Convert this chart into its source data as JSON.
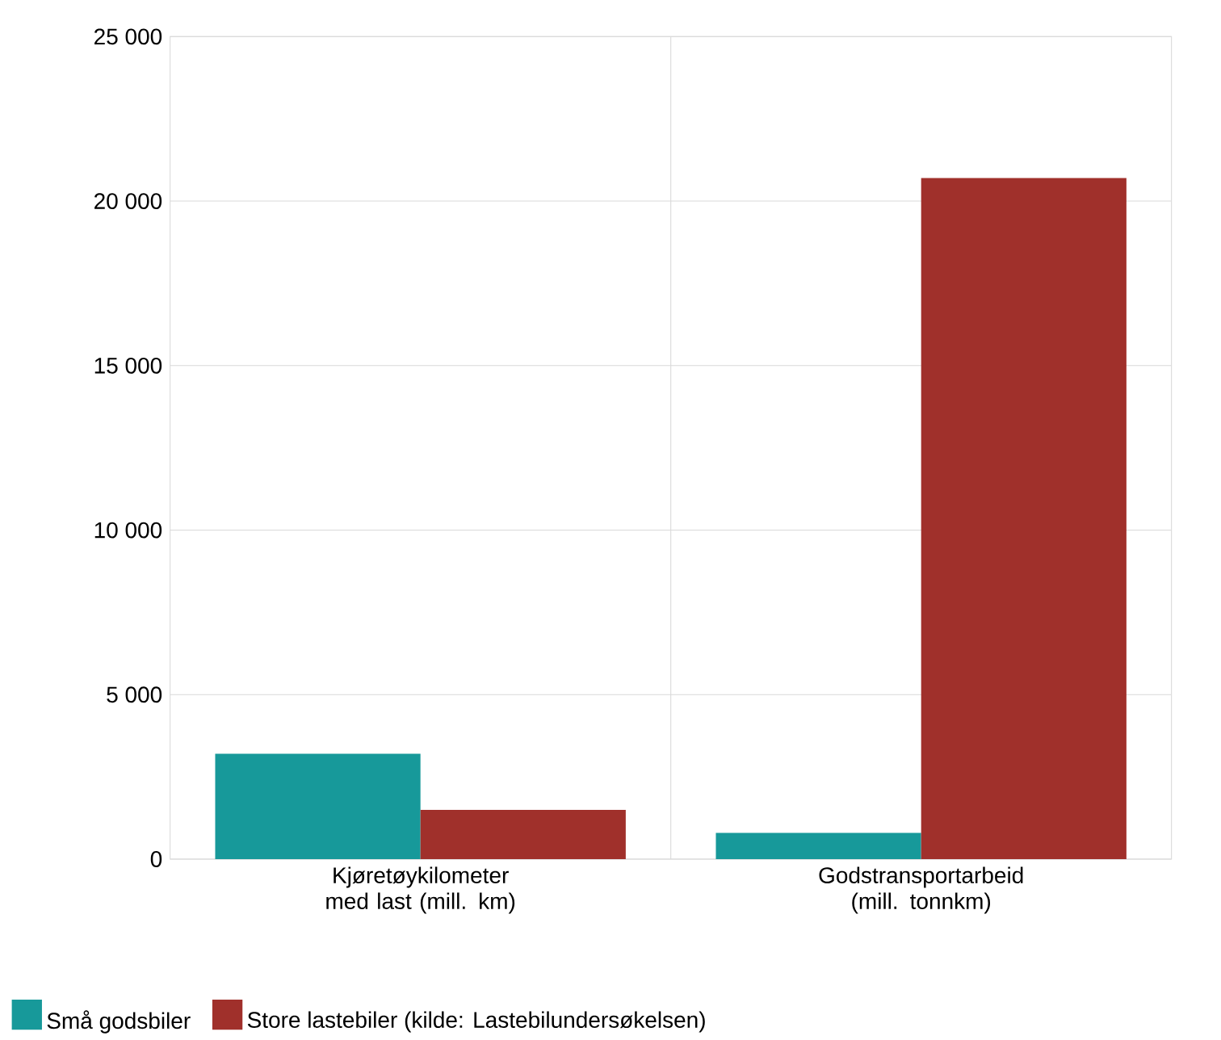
{
  "chart_data": {
    "type": "bar",
    "categories": [
      "Kjøretøykilometer med last (mill. km)",
      "Godstransportarbeid (mill. tonnkm)"
    ],
    "series": [
      {
        "name": "Små godsbiler",
        "color": "#17999a",
        "values": [
          3200,
          800
        ]
      },
      {
        "name": "Store lastebiler (kilde: Lastebilundersøkelsen)",
        "color": "#a0302b",
        "values": [
          1500,
          20700
        ]
      }
    ],
    "ylim": [
      0,
      25000
    ],
    "yticks": [
      {
        "value": 0,
        "label": "0"
      },
      {
        "value": 5000,
        "label": "5 000"
      },
      {
        "value": 10000,
        "label": "10 000"
      },
      {
        "value": 15000,
        "label": "15 000"
      },
      {
        "value": 20000,
        "label": "20 000"
      },
      {
        "value": 25000,
        "label": "25 000"
      }
    ],
    "grid": true,
    "legend": "bottom left"
  }
}
